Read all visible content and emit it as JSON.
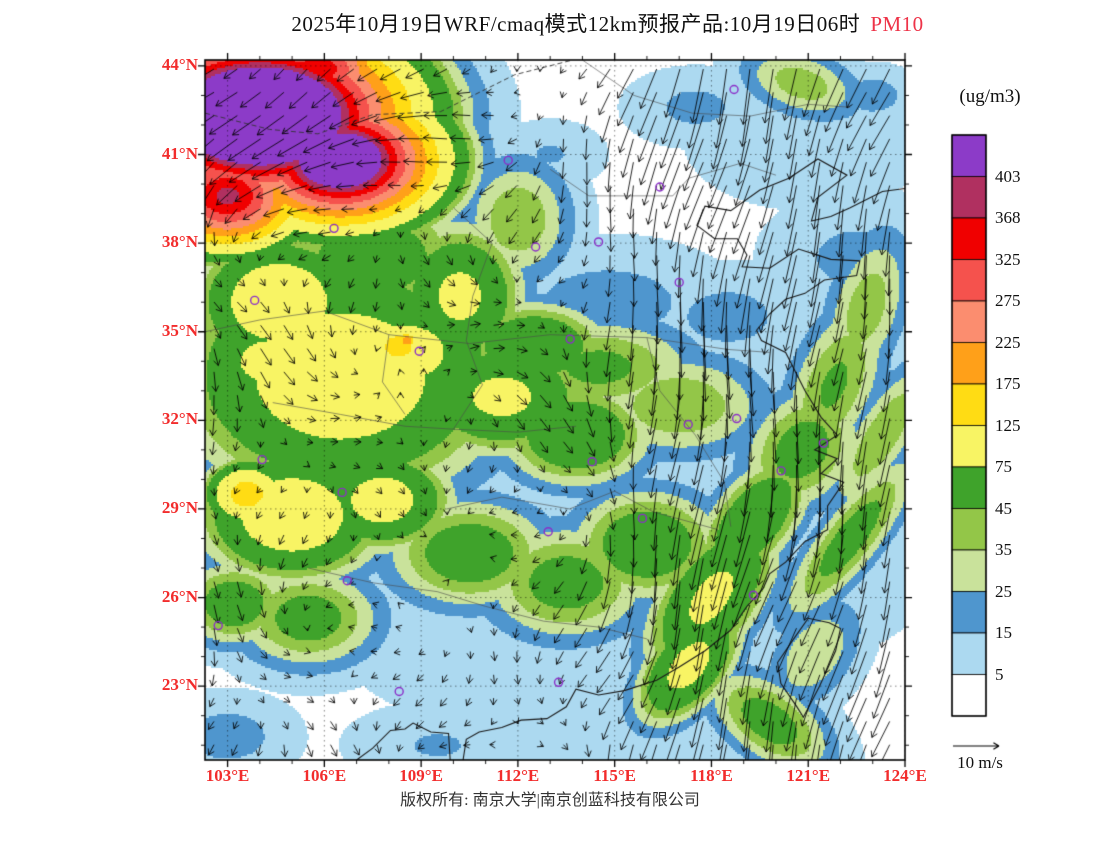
{
  "title": {
    "main": "2025年10月19日WRF/cmaq模式12km预报产品:10月19日06时",
    "variable": "PM10",
    "variable_color": "#ee3348"
  },
  "colorbar": {
    "units": "(ug/m3)",
    "labels": [
      "403",
      "368",
      "325",
      "275",
      "225",
      "175",
      "125",
      "75",
      "45",
      "35",
      "25",
      "15",
      "5"
    ]
  },
  "axes": {
    "x_labels": [
      "103°E",
      "106°E",
      "109°E",
      "112°E",
      "115°E",
      "118°E",
      "121°E",
      "124°E"
    ],
    "x_values": [
      103,
      106,
      109,
      112,
      115,
      118,
      121,
      124
    ],
    "y_labels": [
      "44°N",
      "41°N",
      "38°N",
      "35°N",
      "32°N",
      "29°N",
      "26°N",
      "23°N"
    ],
    "y_values": [
      44,
      41,
      38,
      35,
      32,
      29,
      26,
      23
    ],
    "label_color": "#f22c2c",
    "lon_range": [
      102.3,
      124.0
    ],
    "lat_range": [
      20.5,
      44.2
    ]
  },
  "wind_reference": {
    "label": "10 m/s",
    "speed_ms": 10
  },
  "footer": {
    "copyright": "版权所有: 南京大学|南京创蓝科技有限公司"
  },
  "chart_data": {
    "type": "heatmap",
    "variable": "PM10",
    "units": "ug/m3",
    "title": "WRF/CMAQ 12km PM10 forecast 2025-10-19 06h",
    "levels_asc": [
      5,
      15,
      25,
      35,
      45,
      75,
      125,
      175,
      225,
      275,
      325,
      368,
      403
    ],
    "colors_asc": [
      "#ffffff",
      "#acd9f0",
      "#4f96ce",
      "#c9e29b",
      "#93c648",
      "#3fa32b",
      "#f8f464",
      "#ffdc14",
      "#ffa019",
      "#fb8d6f",
      "#f5524d",
      "#f00000",
      "#b03060",
      "#8c3bc8"
    ],
    "marker_color": "#8b2fc8",
    "wind": {
      "arrow_color": "#000000",
      "reference_ms": 10
    },
    "field_blobs": [
      [
        104.0,
        42.3,
        650,
        2.6,
        1.7,
        0
      ],
      [
        106.5,
        40.8,
        520,
        1.8,
        1.3,
        0
      ],
      [
        103.0,
        39.6,
        380,
        1.4,
        1.1,
        0
      ],
      [
        105.8,
        43.9,
        360,
        1.3,
        0.8,
        0
      ],
      [
        103.3,
        44.2,
        300,
        0.9,
        0.6,
        0
      ],
      [
        106.5,
        33.5,
        105,
        3.2,
        2.6,
        0
      ],
      [
        104.6,
        36.0,
        115,
        1.6,
        1.4,
        0
      ],
      [
        108.5,
        34.3,
        90,
        2.0,
        1.5,
        0
      ],
      [
        108.3,
        34.5,
        165,
        0.55,
        0.45,
        0
      ],
      [
        108.55,
        34.7,
        215,
        0.22,
        0.2,
        0
      ],
      [
        105.0,
        28.8,
        110,
        1.8,
        1.4,
        0
      ],
      [
        103.6,
        29.5,
        150,
        0.8,
        0.7,
        0
      ],
      [
        107.8,
        29.3,
        95,
        1.4,
        1.1,
        0
      ],
      [
        111.5,
        32.8,
        85,
        1.8,
        1.3,
        0
      ],
      [
        113.8,
        31.5,
        70,
        1.6,
        1.2,
        0
      ],
      [
        104.3,
        34.0,
        95,
        1.3,
        1.0,
        0
      ],
      [
        110.2,
        36.2,
        85,
        1.3,
        1.6,
        0
      ],
      [
        112.5,
        34.5,
        75,
        1.5,
        1.0,
        0
      ],
      [
        109.9,
        33.2,
        75,
        1.6,
        0.9,
        0
      ],
      [
        107.5,
        37.5,
        60,
        2.2,
        1.6,
        0
      ],
      [
        112.0,
        38.8,
        45,
        1.2,
        1.5,
        0
      ],
      [
        114.5,
        33.8,
        50,
        2.2,
        1.2,
        0
      ],
      [
        117.0,
        32.5,
        45,
        2.0,
        1.3,
        0
      ],
      [
        105.5,
        25.3,
        55,
        1.6,
        1.2,
        0
      ],
      [
        103.2,
        25.8,
        60,
        1.2,
        1.0,
        0
      ],
      [
        110.5,
        27.5,
        60,
        1.8,
        1.3,
        0
      ],
      [
        113.5,
        26.5,
        55,
        1.8,
        1.4,
        0
      ],
      [
        116.0,
        27.8,
        65,
        1.6,
        1.3,
        0
      ],
      [
        118.0,
        26.0,
        85,
        1.0,
        2.0,
        -32
      ],
      [
        117.3,
        23.7,
        90,
        0.8,
        1.5,
        -35
      ],
      [
        119.3,
        28.6,
        70,
        0.9,
        1.8,
        -35
      ],
      [
        120.8,
        31.0,
        55,
        1.2,
        1.6,
        -30
      ],
      [
        121.8,
        33.2,
        48,
        1.0,
        2.2,
        -20
      ],
      [
        122.8,
        35.8,
        42,
        0.9,
        2.0,
        -15
      ],
      [
        122.3,
        28.0,
        55,
        0.7,
        2.4,
        -35
      ],
      [
        123.3,
        31.5,
        45,
        0.7,
        2.2,
        -30
      ],
      [
        119.8,
        21.8,
        55,
        1.6,
        0.9,
        -40
      ],
      [
        121.2,
        24.1,
        35,
        0.9,
        1.5,
        -30
      ],
      [
        120.8,
        43.4,
        42,
        1.4,
        0.8,
        -20
      ],
      [
        114.8,
        36.0,
        20,
        2.6,
        1.4,
        0
      ],
      [
        118.5,
        35.5,
        19,
        1.8,
        1.2,
        0
      ],
      [
        122.5,
        37.5,
        18,
        2.0,
        1.5,
        0
      ],
      [
        123.5,
        33.0,
        16,
        1.5,
        2.0,
        0
      ],
      [
        113.0,
        41.0,
        16,
        1.2,
        0.8,
        0
      ],
      [
        117.5,
        42.6,
        18,
        1.5,
        0.9,
        0
      ],
      [
        123.0,
        43.0,
        20,
        1.0,
        0.7,
        0
      ],
      [
        121.5,
        40.5,
        14,
        1.5,
        1.0,
        0
      ],
      [
        103.0,
        21.3,
        20,
        1.5,
        1.0,
        0
      ],
      [
        109.5,
        21.0,
        16,
        2.0,
        1.0,
        0
      ],
      [
        120.0,
        29.0,
        9,
        5.5,
        5.0,
        0
      ],
      [
        121.0,
        41.5,
        8,
        4.0,
        2.5,
        0
      ],
      [
        116.0,
        21.5,
        9,
        5.0,
        2.5,
        0
      ],
      [
        110.5,
        24.5,
        12,
        3.0,
        2.0,
        0
      ]
    ],
    "cities": [
      [
        116.4,
        39.9
      ],
      [
        111.7,
        40.8
      ],
      [
        118.7,
        43.2
      ],
      [
        106.3,
        38.5
      ],
      [
        103.84,
        36.06
      ],
      [
        112.55,
        37.87
      ],
      [
        114.5,
        38.04
      ],
      [
        117.0,
        36.67
      ],
      [
        108.94,
        34.34
      ],
      [
        113.62,
        34.75
      ],
      [
        118.78,
        32.06
      ],
      [
        117.28,
        31.86
      ],
      [
        121.47,
        31.23
      ],
      [
        120.16,
        30.29
      ],
      [
        114.3,
        30.6
      ],
      [
        104.07,
        30.67
      ],
      [
        106.55,
        29.56
      ],
      [
        112.94,
        28.23
      ],
      [
        115.86,
        28.68
      ],
      [
        119.3,
        26.08
      ],
      [
        106.71,
        26.57
      ],
      [
        102.71,
        25.05
      ],
      [
        108.32,
        22.82
      ],
      [
        113.26,
        23.13
      ]
    ]
  }
}
